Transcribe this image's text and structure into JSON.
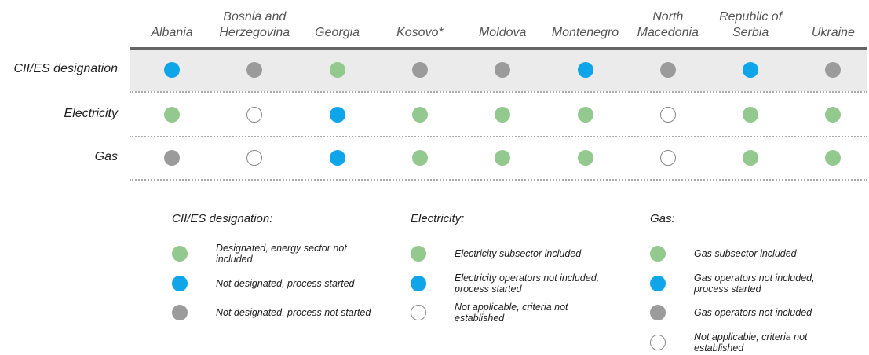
{
  "table": {
    "columns": [
      "Albania",
      "Bosnia and Herzegovina",
      "Georgia",
      "Kosovo*",
      "Moldova",
      "Montenegro",
      "North Macedonia",
      "Republic of Serbia",
      "Ukraine"
    ],
    "rows": [
      {
        "label": "CII/ES designation",
        "cells": [
          "#0ea5e9",
          "#9b9b9b",
          "#93c98e",
          "#9b9b9b",
          "#9b9b9b",
          "#0ea5e9",
          "#9b9b9b",
          "#0ea5e9",
          "#9b9b9b"
        ]
      },
      {
        "label": "Electricity",
        "cells": [
          "#93c98e",
          "#ffffff",
          "#0ea5e9",
          "#93c98e",
          "#93c98e",
          "#93c98e",
          "#ffffff",
          "#93c98e",
          "#93c98e"
        ]
      },
      {
        "label": "Gas",
        "cells": [
          "#9b9b9b",
          "#ffffff",
          "#0ea5e9",
          "#93c98e",
          "#93c98e",
          "#93c98e",
          "#ffffff",
          "#93c98e",
          "#93c98e"
        ]
      }
    ]
  },
  "legend": [
    {
      "title": "CII/ES designation:",
      "items": [
        {
          "color": "#93c98e",
          "label": "Designated, energy sector not included"
        },
        {
          "color": "#0ea5e9",
          "label": "Not designated, process started"
        },
        {
          "color": "#9b9b9b",
          "label": "Not designated, process not started"
        }
      ]
    },
    {
      "title": "Electricity:",
      "items": [
        {
          "color": "#93c98e",
          "label": "Electricity subsector included"
        },
        {
          "color": "#0ea5e9",
          "label": "Electricity operators not included, process started"
        },
        {
          "color": "#ffffff",
          "label": "Not applicable, criteria not established"
        }
      ]
    },
    {
      "title": "Gas:",
      "items": [
        {
          "color": "#93c98e",
          "label": "Gas subsector included"
        },
        {
          "color": "#0ea5e9",
          "label": "Gas operators not included, process started"
        },
        {
          "color": "#9b9b9b",
          "label": "Gas operators not included"
        },
        {
          "color": "#ffffff",
          "label": "Not applicable, criteria not established"
        }
      ]
    }
  ]
}
